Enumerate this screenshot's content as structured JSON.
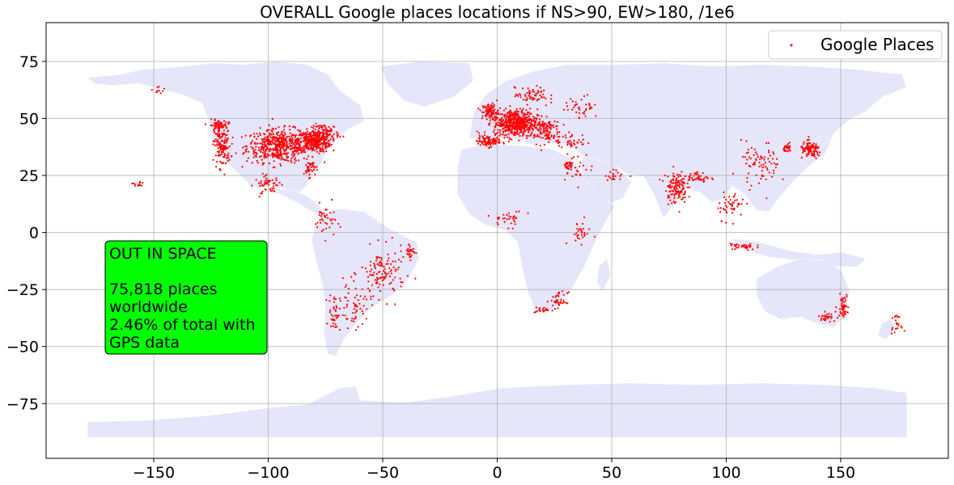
{
  "chart_data": {
    "type": "scatter",
    "title": "OVERALL Google places locations if NS>90, EW>180, /1e6",
    "xlabel": "",
    "ylabel": "",
    "xlim": [
      -197,
      197
    ],
    "ylim": [
      -99,
      92
    ],
    "xticks": [
      -150,
      -100,
      -50,
      0,
      50,
      100,
      150
    ],
    "yticks": [
      -75,
      -50,
      -25,
      0,
      25,
      50,
      75
    ],
    "grid": true,
    "legend": {
      "position": "top-right",
      "entries": [
        "Google Places"
      ]
    },
    "colors": {
      "points": "#ff0000",
      "land": "#e6e6fa",
      "annotation_bg": "#00ff00",
      "grid": "#b0b0b0"
    },
    "annotation": {
      "lines": [
        "OUT IN SPACE",
        "",
        "75,818 places",
        "worldwide",
        "2.46% of total with",
        "GPS data"
      ]
    },
    "series": [
      {
        "name": "Google Places",
        "clusters": [
          {
            "lon": -95,
            "lat": 38,
            "spread_lon": 12,
            "spread_lat": 6,
            "n": 520
          },
          {
            "lon": -80,
            "lat": 40,
            "spread_lon": 6,
            "spread_lat": 4,
            "n": 300
          },
          {
            "lon": -120,
            "lat": 38,
            "spread_lon": 3,
            "spread_lat": 8,
            "n": 140
          },
          {
            "lon": -122,
            "lat": 47,
            "spread_lon": 3,
            "spread_lat": 2,
            "n": 60
          },
          {
            "lon": -75,
            "lat": 44,
            "spread_lon": 5,
            "spread_lat": 3,
            "n": 80
          },
          {
            "lon": -100,
            "lat": 21,
            "spread_lon": 5,
            "spread_lat": 3,
            "n": 50
          },
          {
            "lon": -82,
            "lat": 28,
            "spread_lon": 2,
            "spread_lat": 3,
            "n": 40
          },
          {
            "lon": -75,
            "lat": 5,
            "spread_lon": 4,
            "spread_lat": 6,
            "n": 40
          },
          {
            "lon": -50,
            "lat": -18,
            "spread_lon": 8,
            "spread_lat": 9,
            "n": 120
          },
          {
            "lon": -62,
            "lat": -32,
            "spread_lon": 6,
            "spread_lat": 8,
            "n": 60
          },
          {
            "lon": -71,
            "lat": -35,
            "spread_lon": 2,
            "spread_lat": 7,
            "n": 40
          },
          {
            "lon": -38,
            "lat": -8,
            "spread_lon": 2,
            "spread_lat": 3,
            "n": 30
          },
          {
            "lon": 8,
            "lat": 48,
            "spread_lon": 8,
            "spread_lat": 5,
            "n": 520
          },
          {
            "lon": -3,
            "lat": 53,
            "spread_lon": 3,
            "spread_lat": 3,
            "n": 90
          },
          {
            "lon": -4,
            "lat": 40,
            "spread_lon": 4,
            "spread_lat": 2,
            "n": 90
          },
          {
            "lon": 20,
            "lat": 45,
            "spread_lon": 6,
            "spread_lat": 5,
            "n": 120
          },
          {
            "lon": 15,
            "lat": 60,
            "spread_lon": 6,
            "spread_lat": 3,
            "n": 60
          },
          {
            "lon": 32,
            "lat": 40,
            "spread_lon": 6,
            "spread_lat": 3,
            "n": 40
          },
          {
            "lon": 37,
            "lat": 55,
            "spread_lon": 6,
            "spread_lat": 4,
            "n": 40
          },
          {
            "lon": 35,
            "lat": 29,
            "spread_lon": 6,
            "spread_lat": 5,
            "n": 30
          },
          {
            "lon": 52,
            "lat": 25,
            "spread_lon": 4,
            "spread_lat": 2,
            "n": 20
          },
          {
            "lon": 78,
            "lat": 20,
            "spread_lon": 4,
            "spread_lat": 6,
            "n": 130
          },
          {
            "lon": 88,
            "lat": 24,
            "spread_lon": 4,
            "spread_lat": 2,
            "n": 40
          },
          {
            "lon": 115,
            "lat": 30,
            "spread_lon": 7,
            "spread_lat": 8,
            "n": 80
          },
          {
            "lon": 102,
            "lat": 12,
            "spread_lon": 5,
            "spread_lat": 5,
            "n": 50
          },
          {
            "lon": 127,
            "lat": 37,
            "spread_lon": 1.5,
            "spread_lat": 1.5,
            "n": 30
          },
          {
            "lon": 137,
            "lat": 36,
            "spread_lon": 4,
            "spread_lat": 3,
            "n": 100
          },
          {
            "lon": 107,
            "lat": -6,
            "spread_lon": 5,
            "spread_lat": 1.5,
            "n": 35
          },
          {
            "lon": 151,
            "lat": -32,
            "spread_lon": 2,
            "spread_lat": 4,
            "n": 50
          },
          {
            "lon": 144,
            "lat": -37,
            "spread_lon": 3,
            "spread_lat": 1.5,
            "n": 30
          },
          {
            "lon": 174,
            "lat": -40,
            "spread_lon": 2,
            "spread_lat": 3,
            "n": 20
          },
          {
            "lon": 27,
            "lat": -30,
            "spread_lon": 3,
            "spread_lat": 3,
            "n": 40
          },
          {
            "lon": 20,
            "lat": -34,
            "spread_lon": 3,
            "spread_lat": 1,
            "n": 20
          },
          {
            "lon": 5,
            "lat": 6,
            "spread_lon": 6,
            "spread_lat": 3,
            "n": 30
          },
          {
            "lon": 36,
            "lat": 0,
            "spread_lon": 4,
            "spread_lat": 4,
            "n": 30
          },
          {
            "lon": 31,
            "lat": 29,
            "spread_lon": 2,
            "spread_lat": 2,
            "n": 20
          },
          {
            "lon": -157,
            "lat": 21,
            "spread_lon": 2,
            "spread_lat": 1,
            "n": 12
          },
          {
            "lon": -148,
            "lat": 62,
            "spread_lon": 2,
            "spread_lat": 2,
            "n": 10
          }
        ]
      }
    ]
  }
}
